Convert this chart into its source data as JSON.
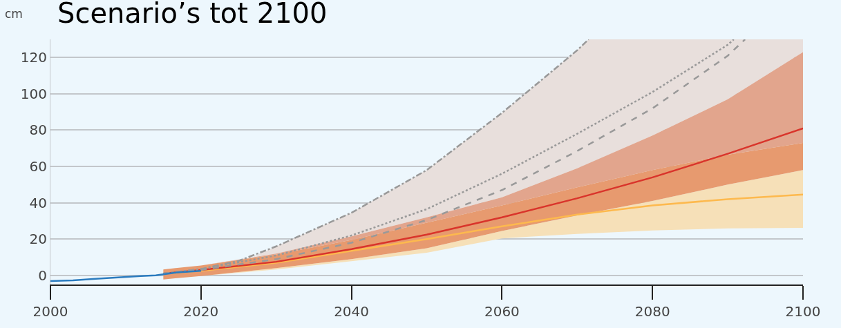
{
  "chart_data": {
    "type": "line",
    "title": "Scenario’s tot 2100",
    "ylabel": "cm",
    "xlim": [
      2000,
      2100
    ],
    "xticks": [
      2000,
      2020,
      2040,
      2060,
      2080,
      2100
    ],
    "ylim": [
      -5,
      130
    ],
    "yticks": [
      0,
      20,
      40,
      60,
      80,
      100,
      120
    ],
    "grid": "y",
    "series": [
      {
        "color": "#e8dfdc",
        "x": [
          2027,
          2030,
          2040,
          2050,
          2060,
          2070,
          2071.5,
          2080,
          2090,
          2100
        ],
        "values": [
          null,
          null,
          null,
          null,
          null,
          null,
          null,
          null,
          null,
          null
        ],
        "upper": [
          10.5,
          16,
          34.5,
          58,
          89.5,
          124,
          130,
          130,
          130,
          130
        ],
        "lower": [
          10.2,
          12,
          21.5,
          32,
          43,
          59,
          61.5,
          77,
          97,
          123
        ]
      },
      {
        "color": "#e2a58d",
        "x": [
          2015,
          2020,
          2030,
          2040,
          2050,
          2060,
          2070,
          2080,
          2090,
          2100
        ],
        "values": [
          null,
          null,
          null,
          null,
          null,
          null,
          null,
          null,
          null,
          null
        ],
        "upper": [
          3.3,
          5.5,
          12,
          21.5,
          32,
          43,
          59,
          77,
          97,
          123
        ],
        "lower": [
          3.3,
          5.5,
          11.5,
          19.5,
          29,
          38.5,
          48.5,
          58,
          66.5,
          73
        ]
      },
      {
        "color": "#f6e0b8",
        "x": [
          2015,
          2020,
          2030,
          2040,
          2050,
          2060,
          2070,
          2080,
          2090,
          2100
        ],
        "values": [
          null,
          null,
          null,
          null,
          null,
          null,
          null,
          null,
          null,
          null
        ],
        "upper": [
          -2.2,
          -0.3,
          4,
          9,
          15,
          24.5,
          33,
          41,
          50,
          58
        ],
        "lower": [
          -2.2,
          -0.3,
          3.3,
          7.8,
          12.5,
          20.4,
          22.9,
          24.8,
          25.9,
          26.2
        ]
      },
      {
        "color": "#e79a6f",
        "x": [
          2015,
          2020,
          2030,
          2040,
          2050,
          2060,
          2070,
          2080,
          2090,
          2100
        ],
        "values": [
          null,
          null,
          null,
          null,
          null,
          null,
          null,
          null,
          null,
          null
        ],
        "upper": [
          3.3,
          5.5,
          11.5,
          19.5,
          29,
          38.5,
          48.5,
          58,
          66.5,
          73
        ],
        "lower": [
          -2.2,
          -0.3,
          4,
          9,
          15,
          24.5,
          33,
          41,
          50,
          58
        ]
      },
      {
        "color": "#fdb94e",
        "line_style": "solid",
        "x": [
          2015,
          2020,
          2030,
          2040,
          2050,
          2060,
          2070,
          2080,
          2090,
          2100
        ],
        "values": [
          1,
          2.5,
          7,
          13.5,
          20,
          27,
          33.5,
          38.5,
          42,
          44.5
        ]
      },
      {
        "color": "#d9342b",
        "line_style": "solid",
        "x": [
          2015,
          2020,
          2030,
          2040,
          2050,
          2060,
          2070,
          2080,
          2090,
          2100
        ],
        "values": [
          1,
          3,
          7.5,
          14.5,
          22.5,
          32,
          42.5,
          54,
          67,
          81
        ]
      },
      {
        "color": "#999999",
        "line_style": "dashed",
        "x": [
          2015,
          2020,
          2030,
          2040,
          2050,
          2060,
          2070,
          2080,
          2090,
          2092.3
        ],
        "values": [
          1,
          3,
          9,
          18,
          30.5,
          47,
          68.5,
          92,
          121,
          130
        ]
      },
      {
        "color": "#999999",
        "line_style": "dotted",
        "x": [
          2015,
          2020,
          2030,
          2040,
          2050,
          2060,
          2070,
          2080,
          2090,
          2090.8
        ],
        "values": [
          1,
          3.5,
          11,
          22,
          36.5,
          56,
          78,
          101,
          127,
          130
        ]
      },
      {
        "color": "#999999",
        "line_style": "dashdot",
        "x": [
          2015,
          2020,
          2025,
          2030,
          2040,
          2050,
          2060,
          2070,
          2071.5
        ],
        "values": [
          1,
          3.5,
          8,
          16,
          34.5,
          58,
          89.5,
          124,
          130
        ]
      },
      {
        "color": "#2a7bbf",
        "line_style": "solid",
        "x": [
          2000,
          2003,
          2006,
          2009,
          2012,
          2014,
          2016.5,
          2020
        ],
        "values": [
          -3.1,
          -2.7,
          -1.9,
          -1.1,
          -0.3,
          0,
          1.5,
          2.5
        ]
      }
    ]
  }
}
